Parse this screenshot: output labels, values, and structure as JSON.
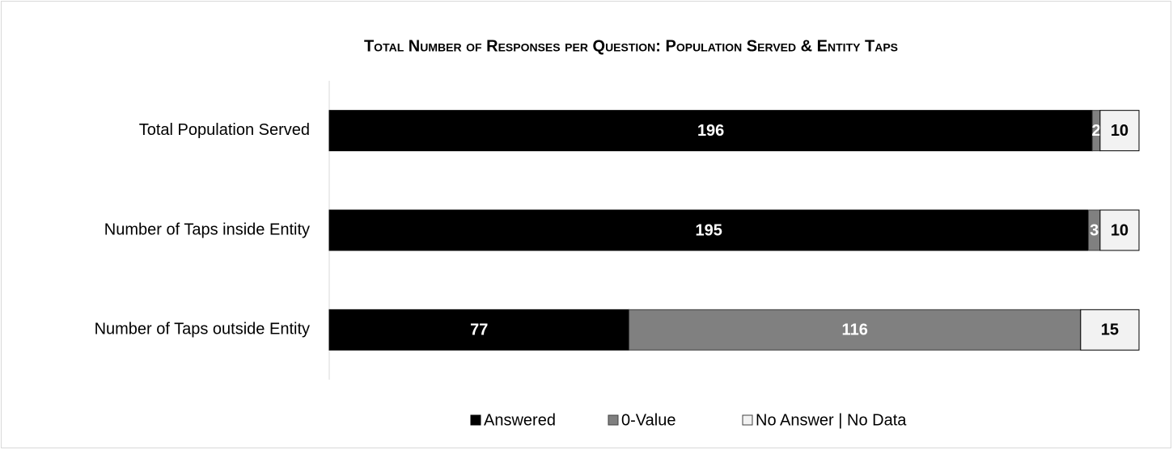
{
  "chart_data": {
    "type": "stacked-bar-horizontal",
    "title": "Total Number of Responses per Question: Population Served & Entity Taps",
    "categories": [
      "Total Population Served",
      "Number of Taps inside Entity",
      "Number of Taps outside Entity"
    ],
    "series": [
      {
        "name": "Answered",
        "color": "#000000",
        "values": [
          196,
          195,
          77
        ]
      },
      {
        "name": "0-Value",
        "color": "#808080",
        "values": [
          2,
          3,
          116
        ]
      },
      {
        "name": "No Answer | No Data",
        "color": "#f2f2f2",
        "values": [
          10,
          10,
          15
        ]
      }
    ],
    "legend": "bottom"
  }
}
